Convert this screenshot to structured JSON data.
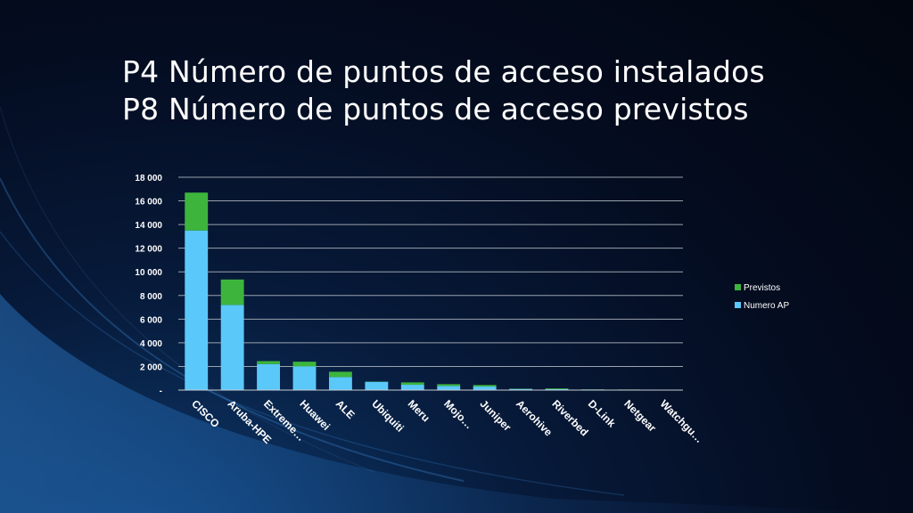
{
  "slide": {
    "title_line1": "P4 Número de puntos de acceso instalados",
    "title_line2": "P8 Número de puntos de acceso previstos"
  },
  "chart_data": {
    "type": "bar",
    "stacked": true,
    "categories": [
      "CISCO",
      "Aruba-HPE",
      "Extreme…",
      "Huawei",
      "ALE",
      "Ubiquiti",
      "Meru",
      "Mojo…",
      "Juniper",
      "Aerohive",
      "Riverbed",
      "D-Link",
      "Netgear",
      "Watchgu…"
    ],
    "series": [
      {
        "name": "Numero AP",
        "color": "#5bc8fa",
        "values": [
          13500,
          7200,
          2200,
          2000,
          1100,
          700,
          450,
          350,
          300,
          100,
          80,
          50,
          40,
          20
        ]
      },
      {
        "name": "Previstos",
        "color": "#3db53d",
        "values": [
          3200,
          2150,
          250,
          400,
          450,
          20,
          200,
          150,
          130,
          20,
          60,
          10,
          10,
          0
        ]
      }
    ],
    "ylim": [
      0,
      18000
    ],
    "yticks": [
      0,
      2000,
      4000,
      6000,
      8000,
      10000,
      12000,
      14000,
      16000,
      18000
    ],
    "ytick_labels": [
      "-",
      "2 000",
      "4 000",
      "6 000",
      "8 000",
      "10 000",
      "12 000",
      "14 000",
      "16 000",
      "18 000"
    ],
    "grid": true,
    "legend": {
      "position": "right",
      "order": [
        "Previstos",
        "Numero AP"
      ]
    }
  }
}
